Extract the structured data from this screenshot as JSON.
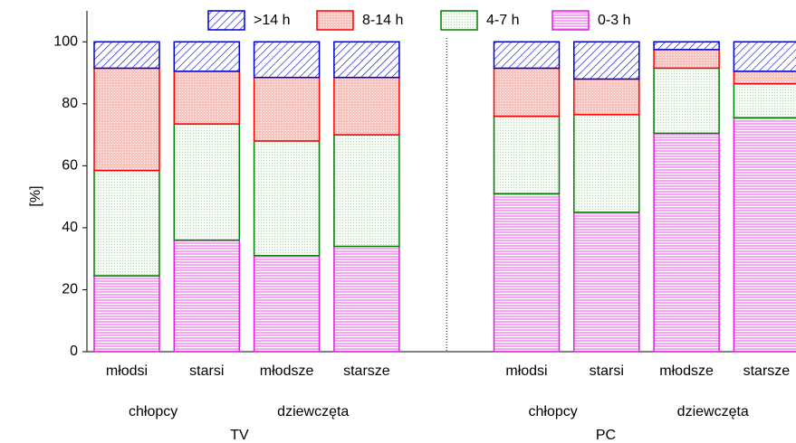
{
  "chart_data": {
    "type": "stacked_bar",
    "y_label": "[%]",
    "categories": [
      "młodsi",
      "starsi",
      "młodsze",
      "starsze",
      "młodsi",
      "starsi",
      "młodsze",
      "starsze"
    ],
    "subgroups": [
      "chłopcy",
      "dziewczęta",
      "chłopcy",
      "dziewczęta"
    ],
    "groups": [
      "TV",
      "PC"
    ],
    "series": [
      {
        "name": "0-3 h",
        "color": "#e020e0",
        "fill": "#f4a8f4",
        "pattern": "horizontal",
        "values": [
          24.5,
          36,
          31,
          34,
          51,
          45,
          70.5,
          75.5
        ]
      },
      {
        "name": "4-7 h",
        "color": "#008000",
        "fill": "#eef8ee",
        "pattern": "dots",
        "values": [
          34,
          37.5,
          37,
          36,
          25,
          31.5,
          21,
          11
        ]
      },
      {
        "name": "8-14 h",
        "color": "#ff0000",
        "fill": "#f8c4c0",
        "pattern": "dense",
        "values": [
          33,
          17,
          20.5,
          18.5,
          15.5,
          11.5,
          6,
          4
        ]
      },
      {
        "name": ">14 h",
        "color": "#0000cc",
        "fill": "#ffffff",
        "pattern": "diagonal",
        "values": [
          8.5,
          9.5,
          11.5,
          11.5,
          8.5,
          12,
          2.5,
          9.5
        ]
      }
    ],
    "ylim": [
      0,
      110
    ],
    "yticks": [
      0,
      20,
      40,
      60,
      80,
      100
    ],
    "legend": "upper center"
  }
}
